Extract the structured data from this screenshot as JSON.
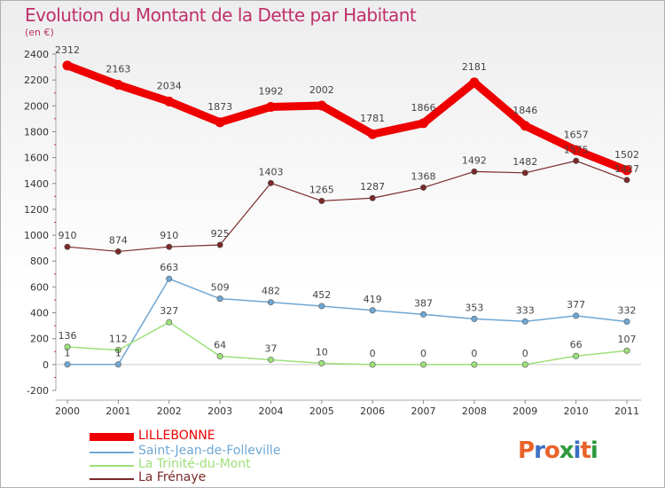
{
  "title": "Evolution du Montant de la Dette par Habitant",
  "unit": "(en €)",
  "logo": {
    "text": "Proxiti",
    "letters": [
      "P",
      "r",
      "o",
      "x",
      "i",
      "t",
      "i"
    ],
    "colors": [
      "#e8632a",
      "#3a6fc4",
      "#e8632a",
      "#2f9a3d",
      "#3a6fc4",
      "#e8632a",
      "#2f9a3d"
    ]
  },
  "chart_data": {
    "type": "line",
    "x": [
      "2000",
      "2001",
      "2002",
      "2003",
      "2004",
      "2005",
      "2006",
      "2007",
      "2008",
      "2009",
      "2010",
      "2011"
    ],
    "ylim": [
      -200,
      2400
    ],
    "yticks": [
      -200,
      0,
      200,
      400,
      600,
      800,
      1000,
      1200,
      1400,
      1600,
      1800,
      2000,
      2200,
      2400
    ],
    "grid": false,
    "legend_position": "bottom-left",
    "series": [
      {
        "name": "LILLEBONNE",
        "color": "#ee0000",
        "width": 9,
        "values": [
          2312,
          2163,
          2034,
          1873,
          1992,
          2002,
          1781,
          1866,
          2181,
          1846,
          1657,
          1502
        ]
      },
      {
        "name": "Saint-Jean-de-Folleville",
        "color": "#6ea7d4",
        "width": 1.5,
        "values": [
          1,
          1,
          663,
          509,
          482,
          452,
          419,
          387,
          353,
          333,
          377,
          332
        ]
      },
      {
        "name": "La Trinité-du-Mont",
        "color": "#9de07a",
        "width": 1.5,
        "values": [
          136,
          112,
          327,
          64,
          37,
          10,
          0,
          0,
          0,
          0,
          66,
          107
        ]
      },
      {
        "name": "La Frénaye",
        "color": "#7a2a2a",
        "width": 1.2,
        "values": [
          910,
          874,
          910,
          925,
          1403,
          1265,
          1287,
          1368,
          1492,
          1482,
          1575,
          1427
        ]
      }
    ]
  }
}
